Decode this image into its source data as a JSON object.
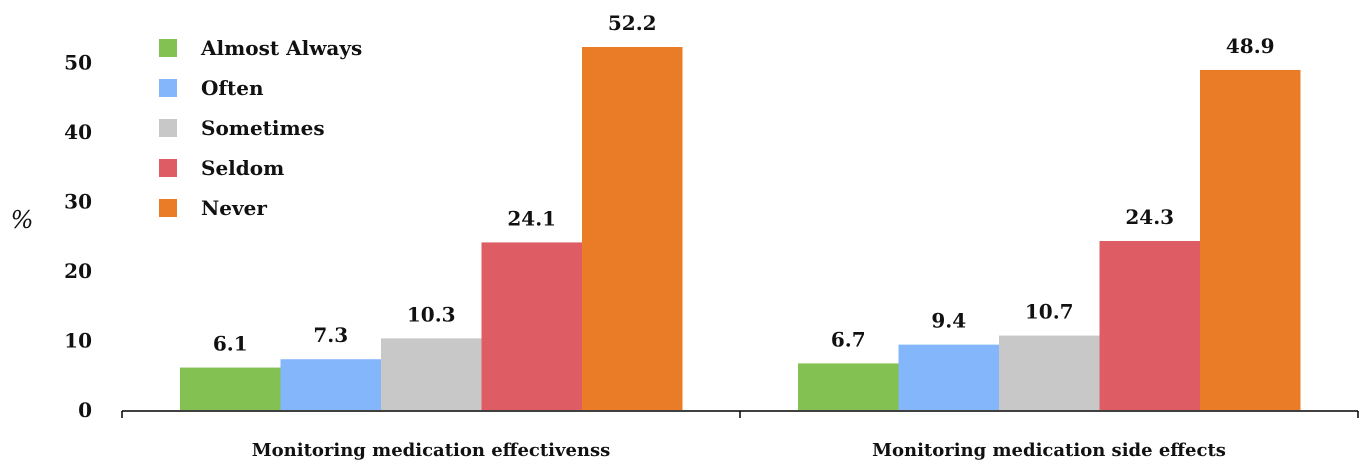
{
  "chart_data": {
    "type": "bar",
    "ylabel": "%",
    "ylim": [
      0,
      52.2
    ],
    "yticks": [
      0,
      10,
      20,
      30,
      40,
      50
    ],
    "grid": false,
    "legend_position": "top-left",
    "categories": [
      "Monitoring medication effectivenss",
      "Monitoring medication side effects"
    ],
    "series": [
      {
        "name": "Almost Always",
        "color": "#82c152",
        "values": [
          6.1,
          6.7
        ]
      },
      {
        "name": "Often",
        "color": "#83b6fb",
        "values": [
          7.3,
          9.4
        ]
      },
      {
        "name": "Sometimes",
        "color": "#c8c8c8",
        "values": [
          10.3,
          10.7
        ]
      },
      {
        "name": "Seldom",
        "color": "#de5c63",
        "values": [
          24.1,
          24.3
        ]
      },
      {
        "name": "Never",
        "color": "#ea7c28",
        "values": [
          52.2,
          48.9
        ]
      }
    ]
  }
}
